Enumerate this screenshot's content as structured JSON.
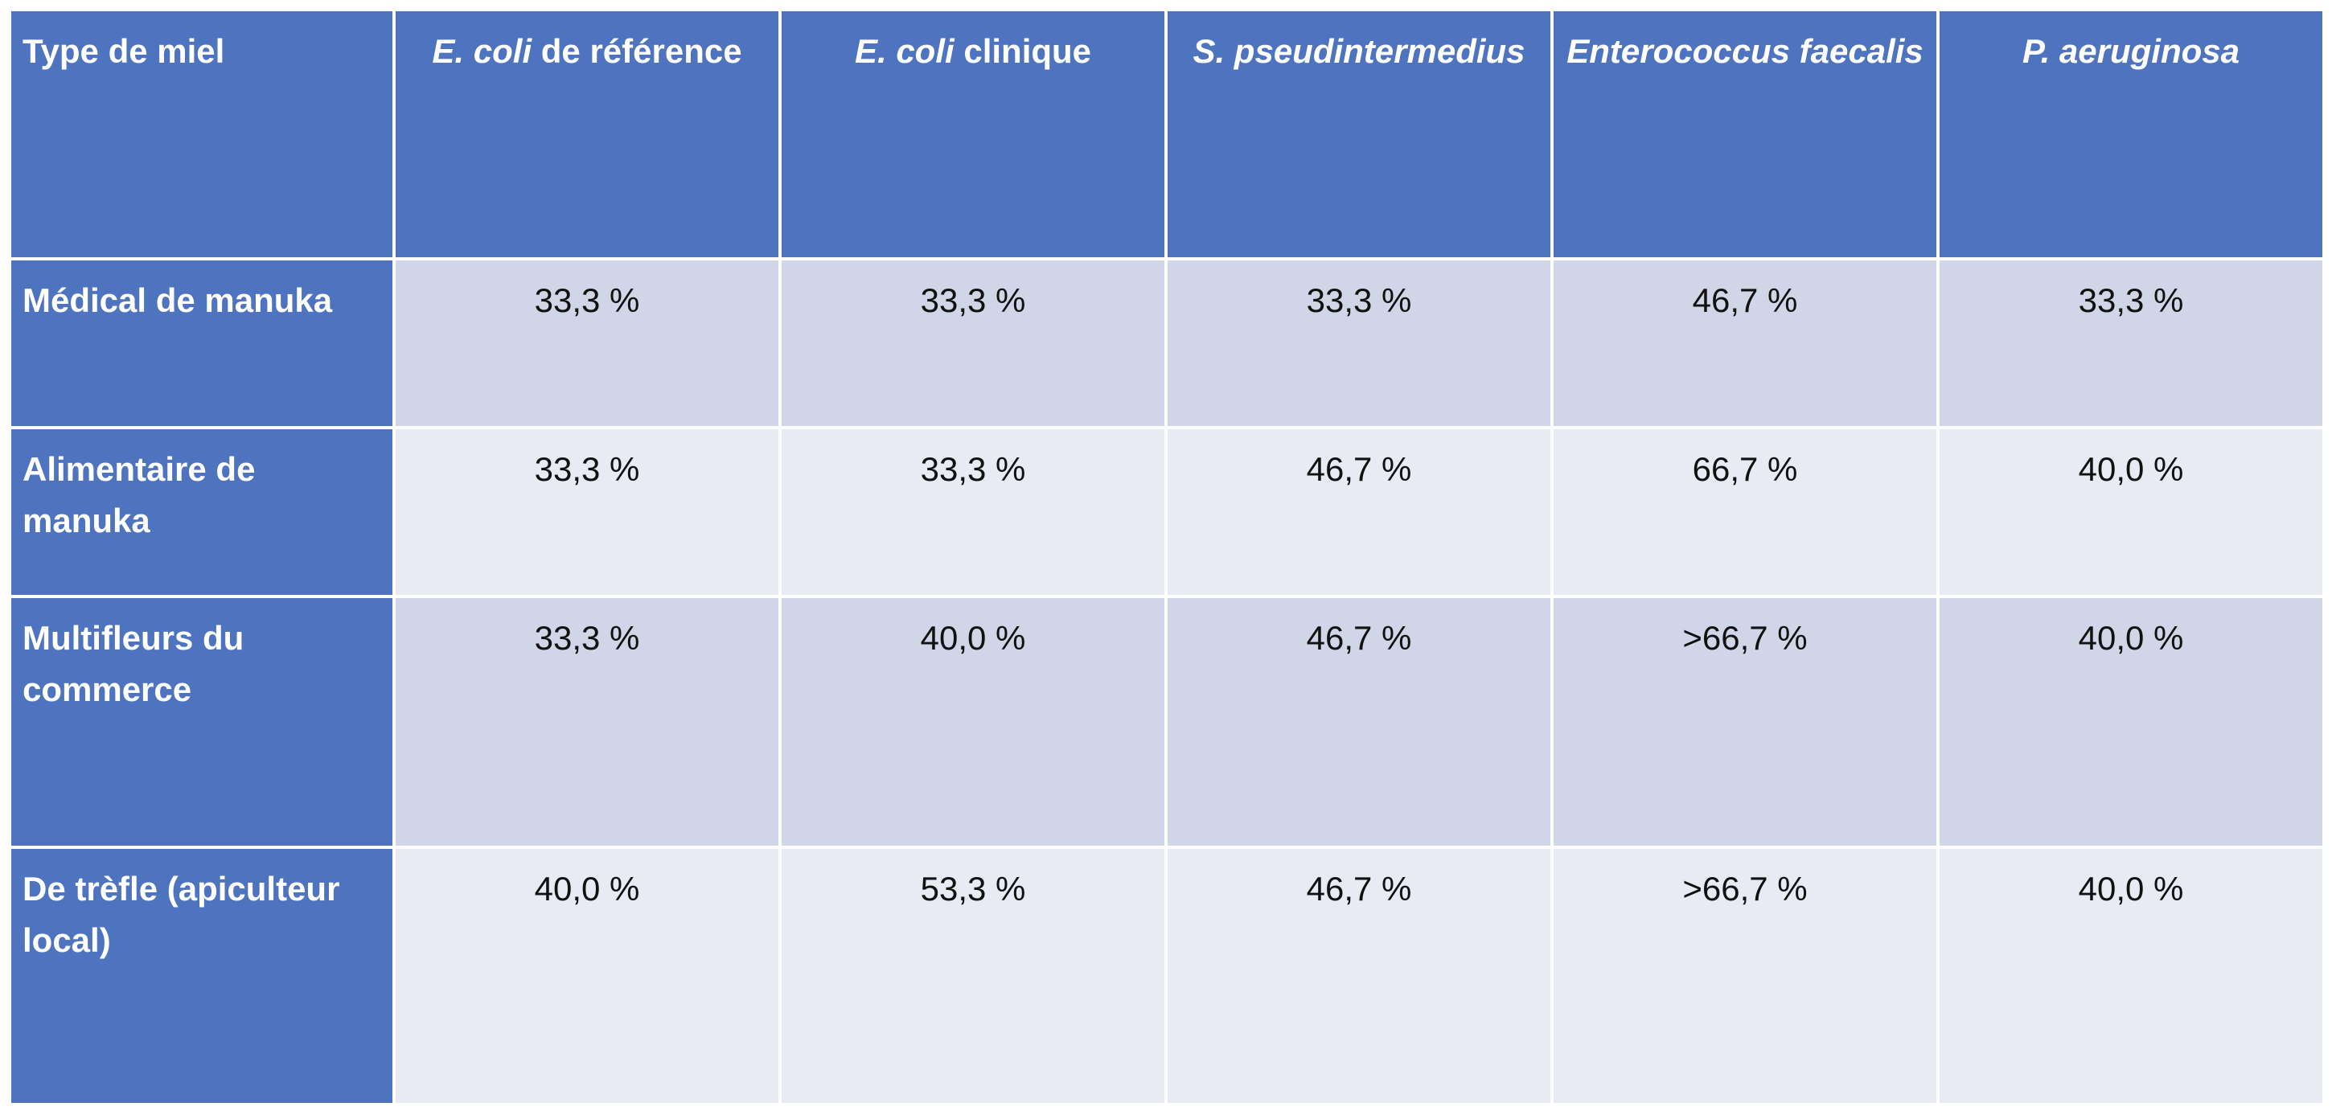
{
  "table": {
    "header": {
      "honey_type": "Type de miel",
      "col1": {
        "species": "E. coli",
        "suffix": " de référence"
      },
      "col2": {
        "species": "E. coli",
        "suffix": " clinique"
      },
      "col3": {
        "species": "S. pseudintermedius",
        "suffix": ""
      },
      "col4": {
        "species": "Enterococcus faecalis",
        "suffix": ""
      },
      "col5": {
        "species": "P. aeruginosa",
        "suffix": ""
      }
    },
    "rows": [
      {
        "label": "Médical de manuka",
        "values": [
          "33,3 %",
          "33,3 %",
          "33,3 %",
          "46,7 %",
          "33,3 %"
        ]
      },
      {
        "label": "Alimentaire de manuka",
        "values": [
          "33,3 %",
          "33,3 %",
          "46,7 %",
          "66,7 %",
          "40,0 %"
        ]
      },
      {
        "label": "Multifleurs du commerce",
        "values": [
          "33,3 %",
          "40,0 %",
          "46,7 %",
          ">66,7 %",
          "40,0 %"
        ]
      },
      {
        "label": "De trèfle (apiculteur local)",
        "values": [
          "40,0 %",
          "53,3 %",
          "46,7 %",
          ">66,7 %",
          "40,0 %"
        ]
      }
    ]
  },
  "colors": {
    "header_bg": "#4e73bf",
    "row_odd_bg": "#d0d6e8",
    "row_even_bg": "#e8ebf4"
  }
}
